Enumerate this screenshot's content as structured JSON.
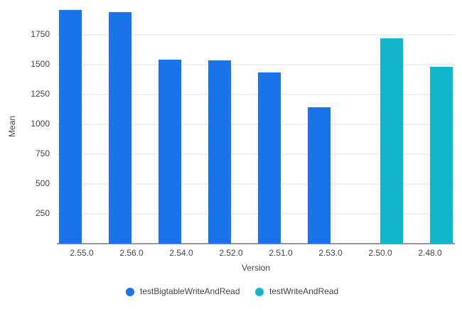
{
  "chart_data": {
    "type": "bar",
    "x_label": "Version",
    "y_label": "Mean",
    "categories": [
      "2.55.0",
      "2.56.0",
      "2.54.0",
      "2.52.0",
      "2.51.0",
      "2.53.0",
      "2.50.0",
      "2.48.0"
    ],
    "series": [
      {
        "name": "testBigtableWriteAndRead",
        "color": "#1a73e8",
        "values": [
          1958,
          1940,
          1542,
          1536,
          1435,
          1143,
          null,
          null
        ]
      },
      {
        "name": "testWriteAndRead",
        "color": "#12b5cb",
        "values": [
          null,
          null,
          null,
          null,
          null,
          null,
          1720,
          1482
        ]
      }
    ],
    "ylim": [
      0,
      2000
    ],
    "yticks": [
      250,
      500,
      750,
      1000,
      1250,
      1500,
      1750
    ],
    "grid": true,
    "legend": "bottom"
  }
}
